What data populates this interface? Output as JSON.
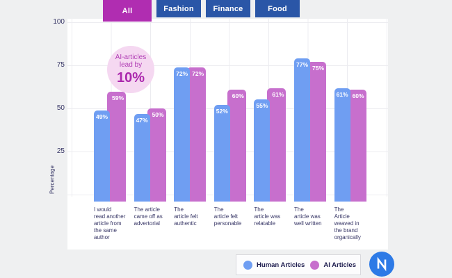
{
  "tabs": {
    "items": [
      {
        "label": "All",
        "active": true
      },
      {
        "label": "Fashion",
        "active": false
      },
      {
        "label": "Finance",
        "active": false
      },
      {
        "label": "Food",
        "active": false
      }
    ]
  },
  "annotation": {
    "line1": "AI-articles",
    "line2": "lead by",
    "value": "10%"
  },
  "chart_data": {
    "type": "bar",
    "categories": [
      "I would\nread another\narticle from\nthe same\nauthor",
      "The article\ncame off as\nadvertorial",
      "The\narticle felt\nauthentic",
      "The\narticle felt\npersonable",
      "The\narticle was\nrelatable",
      "The\narticle was\nwell written",
      "The\nArticle\nweaved in\nthe brand\norganically"
    ],
    "series": [
      {
        "name": "Human Articles",
        "color": "#6f9ef2",
        "values": [
          49,
          47,
          72,
          52,
          55,
          77,
          61
        ]
      },
      {
        "name": "AI Articles",
        "color": "#c76fcd",
        "values": [
          59,
          50,
          72,
          60,
          61,
          75,
          60
        ]
      }
    ],
    "value_suffix": "%",
    "ylabel": "Percentage",
    "yticks": [
      100,
      75,
      50,
      25
    ],
    "ylim": [
      0,
      100
    ],
    "grid": true,
    "legend_position": "bottom-right",
    "annotation_text": "AI-articles lead by 10%"
  },
  "legend": {
    "items": [
      {
        "label": "Human Articles",
        "color": "#6f9ef2"
      },
      {
        "label": "AI Articles",
        "color": "#c76fcd"
      }
    ]
  },
  "colors": {
    "tab_active": "#b02db1",
    "tab_inactive": "#2a56a7",
    "human_bar": "#6f9ef2",
    "ai_bar": "#c76fcd",
    "bubble_bg": "#f5d8f1",
    "bubble_text": "#b13eb5",
    "logo_circle": "#2d7ae6"
  }
}
